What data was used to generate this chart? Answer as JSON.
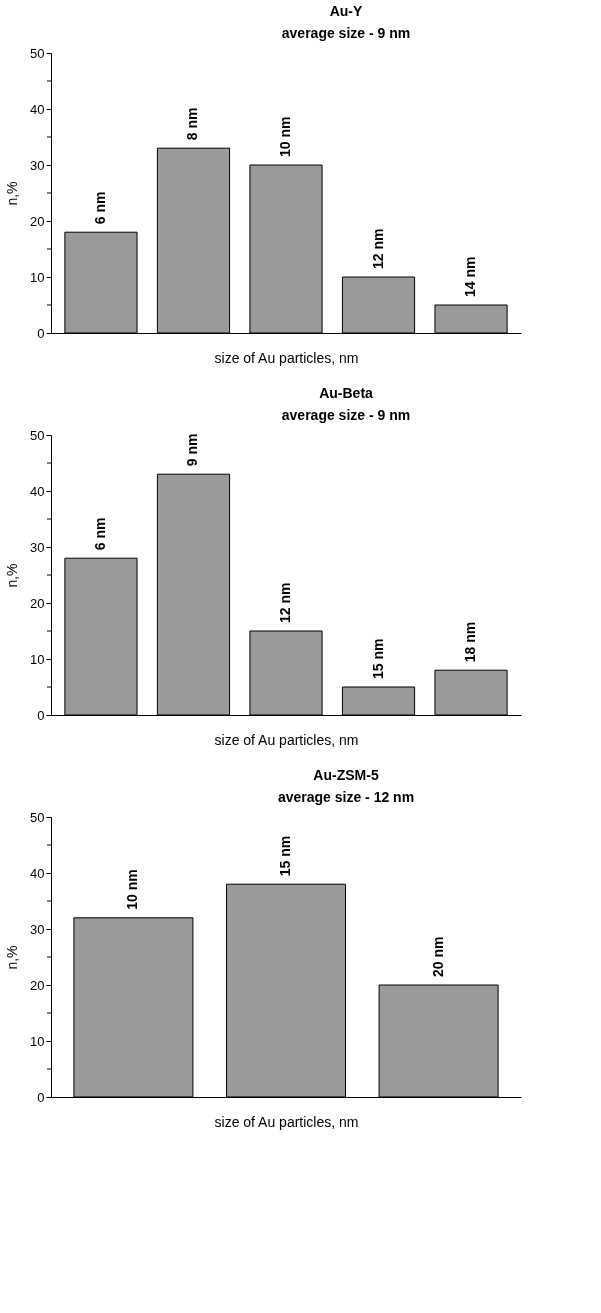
{
  "chart_data": [
    {
      "type": "bar",
      "title": "Au-Y",
      "subtitle": "average size - 9 nm",
      "xlabel": "size of Au particles, nm",
      "ylabel": "n,%",
      "categories": [
        "6 nm",
        "8 nm",
        "10 nm",
        "12 nm",
        "14 nm"
      ],
      "values": [
        18,
        33,
        30,
        10,
        5
      ],
      "color": "#9a9a9a",
      "ylim": [
        0,
        50
      ],
      "yticks": [
        0,
        {
          "value": 5,
          "label": null
        },
        10,
        {
          "value": 15,
          "label": null
        },
        20,
        {
          "value": 25,
          "label": null
        },
        30,
        {
          "value": 35,
          "label": null
        },
        40,
        {
          "value": 45,
          "label": null
        },
        50
      ],
      "grid": false,
      "tick_labels": "y"
    },
    {
      "type": "bar",
      "title": "Au-Beta",
      "subtitle": "average size - 9 nm",
      "xlabel": "size of Au particles, nm",
      "ylabel": "n,%",
      "categories": [
        "6 nm",
        "9 nm",
        "12 nm",
        "15 nm",
        "18 nm"
      ],
      "values": [
        28,
        43,
        15,
        5,
        8
      ],
      "color": "#9a9a9a",
      "ylim": [
        0,
        50
      ],
      "yticks": [
        0,
        {
          "value": 5,
          "label": null
        },
        10,
        {
          "value": 15,
          "label": null
        },
        20,
        {
          "value": 25,
          "label": null
        },
        30,
        {
          "value": 35,
          "label": null
        },
        40,
        {
          "value": 45,
          "label": null
        },
        50
      ],
      "grid": false,
      "tick_labels": "y"
    },
    {
      "type": "bar",
      "title": "Au-ZSM-5",
      "subtitle": "average size - 12 nm",
      "xlabel": "size of Au particles, nm",
      "ylabel": "n,%",
      "categories": [
        "10 nm",
        "15 nm",
        "20 nm"
      ],
      "values": [
        32,
        38,
        20
      ],
      "color": "#9a9a9a",
      "ylim": [
        0,
        50
      ],
      "yticks": [
        0,
        {
          "value": 5,
          "label": null
        },
        10,
        {
          "value": 15,
          "label": null
        },
        20,
        {
          "value": 25,
          "label": null
        },
        30,
        {
          "value": 35,
          "label": null
        },
        40,
        {
          "value": 45,
          "label": null
        },
        50
      ],
      "grid": false,
      "tick_labels": "y"
    }
  ]
}
